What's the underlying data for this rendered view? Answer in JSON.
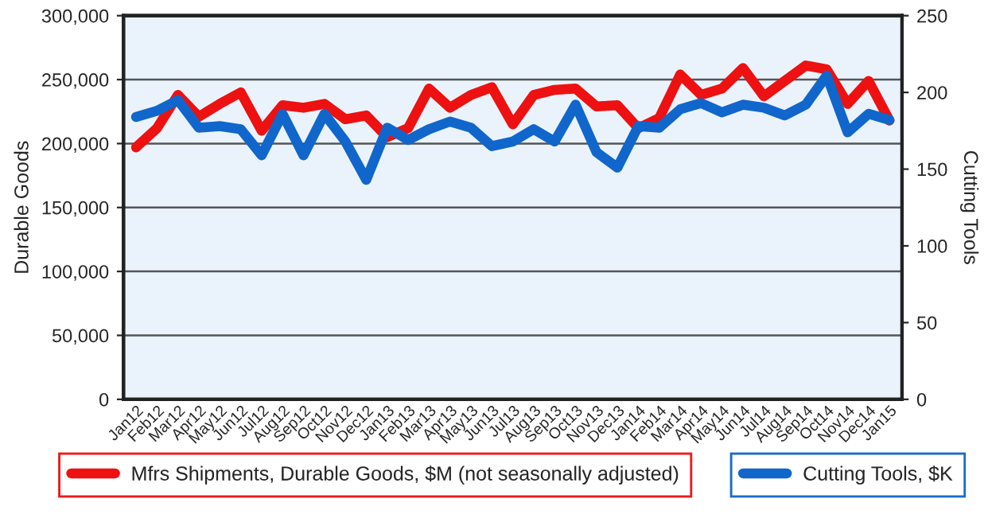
{
  "chart_data": {
    "type": "line",
    "ylabel": "Durable Goods",
    "y2label": "Cutting Tools",
    "categories": [
      "Jan12",
      "Feb12",
      "Mar12",
      "Apr12",
      "May12",
      "Jun12",
      "Jul12",
      "Aug12",
      "Sep12",
      "Oct12",
      "Nov12",
      "Dec12",
      "Jan13",
      "Feb13",
      "Mar13",
      "Apr13",
      "May13",
      "Jun13",
      "Jul13",
      "Aug13",
      "Sep13",
      "Oct13",
      "Nov13",
      "Dec13",
      "Jan14",
      "Feb14",
      "Mar14",
      "Apr14",
      "May14",
      "Jun14",
      "Jul14",
      "Aug14",
      "Sep14",
      "Oct14",
      "Nov14",
      "Dec14",
      "Jan15"
    ],
    "series": [
      {
        "name": "Mfrs Shipments, Durable Goods, $M (not seasonally adjusted)",
        "color": "#ee1111",
        "values": [
          197000,
          212000,
          238000,
          221000,
          231000,
          240000,
          210000,
          230000,
          228000,
          231000,
          219000,
          222000,
          205000,
          212000,
          243000,
          228000,
          238000,
          244000,
          215000,
          238000,
          242000,
          243000,
          229000,
          230000,
          212000,
          220000,
          254000,
          238000,
          243000,
          259000,
          237000,
          249000,
          261000,
          258000,
          231000,
          249000,
          218000
        ]
      },
      {
        "name": "Cutting Tools, $K",
        "color": "#1166cc",
        "axis": "y2",
        "values": [
          184,
          188,
          195,
          177,
          178,
          176,
          159,
          186,
          159,
          186,
          168,
          143,
          177,
          169,
          176,
          181,
          177,
          165,
          168,
          176,
          168,
          192,
          161,
          151,
          178,
          177,
          189,
          193,
          187,
          192,
          190,
          185,
          192,
          211,
          174,
          186,
          182
        ]
      }
    ],
    "ylim": [
      0,
      300000
    ],
    "yticks": [
      {
        "value": 0,
        "label": "0"
      },
      {
        "value": 50000,
        "label": "50,000"
      },
      {
        "value": 100000,
        "label": "100,000"
      },
      {
        "value": 150000,
        "label": "150,000"
      },
      {
        "value": 200000,
        "label": "200,000"
      },
      {
        "value": 250000,
        "label": "250,000"
      },
      {
        "value": 300000,
        "label": "300,000"
      }
    ],
    "y2lim": [
      0,
      250
    ],
    "y2ticks": [
      0,
      50,
      100,
      150,
      200,
      250
    ],
    "grid": "y",
    "legend": "bottom",
    "marker": "none",
    "line_style": "solid"
  }
}
